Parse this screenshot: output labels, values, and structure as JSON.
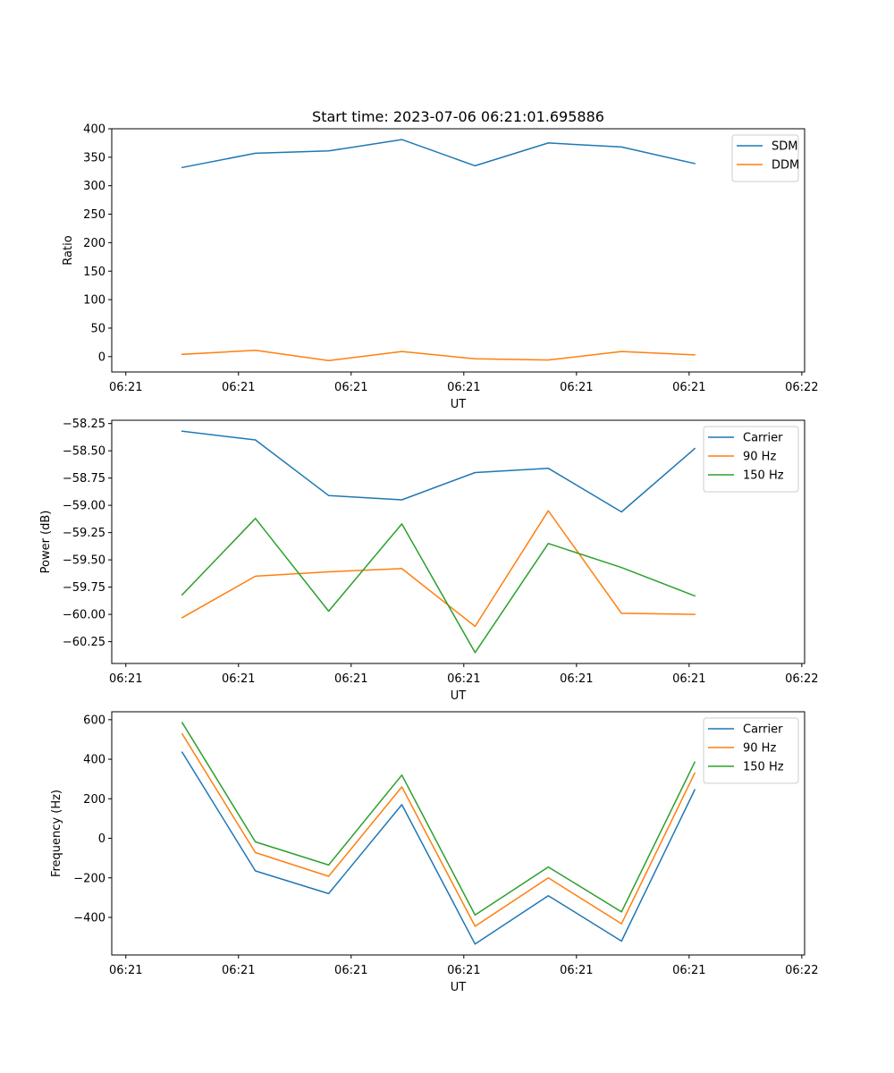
{
  "chart_data": {
    "title": "Start time: 2023-07-06 06:21:01.695886",
    "panels": [
      {
        "type": "line",
        "name": "ratio-panel",
        "ylabel": "Ratio",
        "xlabel": "UT",
        "ylim": [
          -27,
          400
        ],
        "yticks": [
          0,
          50,
          100,
          150,
          200,
          250,
          300,
          350,
          400
        ],
        "ytick_labels": [
          "0",
          "50",
          "100",
          "150",
          "200",
          "250",
          "300",
          "350",
          "400"
        ],
        "xlim": [
          0,
          12.3
        ],
        "xticks": [
          0.25,
          2.25,
          4.25,
          6.25,
          8.25,
          10.25,
          12.25
        ],
        "xtick_labels": [
          "06:21",
          "06:21",
          "06:21",
          "06:21",
          "06:21",
          "06:21",
          "06:22"
        ],
        "x": [
          1.25,
          2.55,
          3.85,
          5.15,
          6.45,
          7.75,
          9.05,
          10.35
        ],
        "legend_loc": "upper right",
        "series": [
          {
            "name": "SDM",
            "color": "#1f77b4",
            "values": [
              332,
              357,
              361,
              381,
              335,
              375,
              368,
              339
            ]
          },
          {
            "name": "DDM",
            "color": "#ff7f0e",
            "values": [
              4,
              11,
              -7,
              9,
              -4,
              -6,
              9,
              3
            ]
          }
        ]
      },
      {
        "type": "line",
        "name": "power-panel",
        "ylabel": "Power (dB)",
        "xlabel": "UT",
        "ylim": [
          -60.45,
          -58.22
        ],
        "yticks": [
          -60.25,
          -60.0,
          -59.75,
          -59.5,
          -59.25,
          -59.0,
          -58.75,
          -58.5,
          -58.25
        ],
        "ytick_labels": [
          "−60.25",
          "−60.00",
          "−59.75",
          "−59.50",
          "−59.25",
          "−59.00",
          "−58.75",
          "−58.50",
          "−58.25"
        ],
        "xlim": [
          0,
          12.3
        ],
        "xticks": [
          0.25,
          2.25,
          4.25,
          6.25,
          8.25,
          10.25,
          12.25
        ],
        "xtick_labels": [
          "06:21",
          "06:21",
          "06:21",
          "06:21",
          "06:21",
          "06:21",
          "06:22"
        ],
        "x": [
          1.25,
          2.55,
          3.85,
          5.15,
          6.45,
          7.75,
          9.05,
          10.35
        ],
        "legend_loc": "upper right",
        "series": [
          {
            "name": "Carrier",
            "color": "#1f77b4",
            "values": [
              -58.32,
              -58.4,
              -58.91,
              -58.95,
              -58.7,
              -58.66,
              -59.06,
              -58.48
            ]
          },
          {
            "name": "90 Hz",
            "color": "#ff7f0e",
            "values": [
              -60.03,
              -59.65,
              -59.61,
              -59.58,
              -60.11,
              -59.05,
              -59.99,
              -60.0
            ]
          },
          {
            "name": "150 Hz",
            "color": "#2ca02c",
            "values": [
              -59.82,
              -59.12,
              -59.97,
              -59.17,
              -60.35,
              -59.35,
              -59.57,
              -59.83
            ]
          }
        ]
      },
      {
        "type": "line",
        "name": "frequency-panel",
        "ylabel": "Frequency (Hz)",
        "xlabel": "UT",
        "ylim": [
          -590,
          640
        ],
        "yticks": [
          -400,
          -200,
          0,
          200,
          400,
          600
        ],
        "ytick_labels": [
          "−400",
          "−200",
          "0",
          "200",
          "400",
          "600"
        ],
        "xlim": [
          0,
          12.3
        ],
        "xticks": [
          0.25,
          2.25,
          4.25,
          6.25,
          8.25,
          10.25,
          12.25
        ],
        "xtick_labels": [
          "06:21",
          "06:21",
          "06:21",
          "06:21",
          "06:21",
          "06:21",
          "06:22"
        ],
        "x": [
          1.25,
          2.55,
          3.85,
          5.15,
          6.45,
          7.75,
          9.05,
          10.35
        ],
        "legend_loc": "upper right",
        "series": [
          {
            "name": "Carrier",
            "color": "#1f77b4",
            "values": [
              435,
              -165,
              -280,
              170,
              -535,
              -290,
              -520,
              245
            ]
          },
          {
            "name": "90 Hz",
            "color": "#ff7f0e",
            "values": [
              528,
              -72,
              -192,
              260,
              -445,
              -200,
              -432,
              330
            ]
          },
          {
            "name": "150 Hz",
            "color": "#2ca02c",
            "values": [
              585,
              -18,
              -135,
              320,
              -388,
              -145,
              -372,
              385
            ]
          }
        ]
      }
    ]
  }
}
